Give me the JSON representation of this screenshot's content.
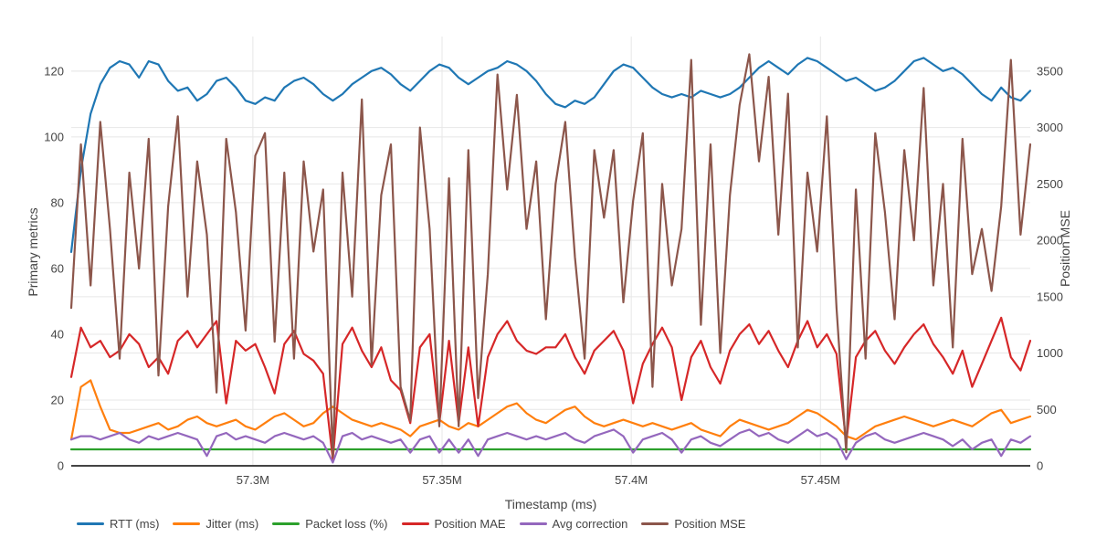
{
  "chart_data": {
    "type": "line",
    "title": "",
    "x_axis": {
      "title": "Timestamp (ms)",
      "range": [
        57252000,
        57505440
      ],
      "ticks": [
        {
          "value": 57300000,
          "label": "57.3M"
        },
        {
          "value": 57350000,
          "label": "57.35M"
        },
        {
          "value": 57400000,
          "label": "57.4M"
        },
        {
          "value": 57450000,
          "label": "57.45M"
        }
      ]
    },
    "y_left": {
      "title": "Primary metrics",
      "range": [
        0,
        130.5
      ],
      "ticks": [
        0,
        20,
        40,
        60,
        80,
        100,
        120
      ]
    },
    "y_right": {
      "title": "Position MSE",
      "range": [
        0,
        3807
      ],
      "ticks": [
        0,
        500,
        1000,
        1500,
        2000,
        2500,
        3000,
        3500
      ]
    },
    "x_start": 57252000,
    "x_step": 2560,
    "n_points": 100,
    "grid": {
      "show": true,
      "color": "#e7e7e7",
      "zeroline_color": "#444444"
    },
    "legend": {
      "position": "bottom-left"
    },
    "series": [
      {
        "name": "RTT (ms)",
        "color": "#1f77b4",
        "axis": "left",
        "values": [
          65,
          90,
          107,
          116,
          121,
          123,
          122,
          118,
          123,
          122,
          117,
          114,
          115,
          111,
          113,
          117,
          118,
          115,
          111,
          110,
          112,
          111,
          115,
          117,
          118,
          116,
          113,
          111,
          113,
          116,
          118,
          120,
          121,
          119,
          116,
          114,
          117,
          120,
          122,
          121,
          118,
          116,
          118,
          120,
          121,
          123,
          122,
          120,
          117,
          113,
          110,
          109,
          111,
          110,
          112,
          116,
          120,
          122,
          121,
          118,
          115,
          113,
          112,
          113,
          112,
          114,
          113,
          112,
          113,
          115,
          118,
          121,
          123,
          121,
          119,
          122,
          124,
          123,
          121,
          119,
          117,
          118,
          116,
          114,
          115,
          117,
          120,
          123,
          124,
          122,
          120,
          121,
          119,
          116,
          113,
          111,
          115,
          112,
          111,
          114
        ]
      },
      {
        "name": "Jitter (ms)",
        "color": "#ff7f0e",
        "axis": "left",
        "values": [
          8,
          24,
          26,
          18,
          11,
          10,
          10,
          11,
          12,
          13,
          11,
          12,
          14,
          15,
          13,
          12,
          13,
          14,
          12,
          11,
          13,
          15,
          16,
          14,
          12,
          13,
          16,
          18,
          16,
          14,
          13,
          12,
          13,
          12,
          11,
          9,
          12,
          13,
          14,
          12,
          11,
          13,
          12,
          14,
          16,
          18,
          19,
          16,
          14,
          13,
          15,
          17,
          18,
          15,
          13,
          12,
          13,
          14,
          13,
          12,
          13,
          12,
          11,
          12,
          13,
          11,
          10,
          9,
          12,
          14,
          13,
          12,
          11,
          12,
          13,
          15,
          17,
          16,
          14,
          12,
          9,
          8,
          10,
          12,
          13,
          14,
          15,
          14,
          13,
          12,
          13,
          14,
          13,
          12,
          14,
          16,
          17,
          13,
          14,
          15
        ]
      },
      {
        "name": "Packet loss (%)",
        "color": "#2ca02c",
        "axis": "left",
        "values": [
          5,
          5,
          5,
          5,
          5,
          5,
          5,
          5,
          5,
          5,
          5,
          5,
          5,
          5,
          5,
          5,
          5,
          5,
          5,
          5,
          5,
          5,
          5,
          5,
          5,
          5,
          5,
          5,
          5,
          5,
          5,
          5,
          5,
          5,
          5,
          5,
          5,
          5,
          5,
          5,
          5,
          5,
          5,
          5,
          5,
          5,
          5,
          5,
          5,
          5,
          5,
          5,
          5,
          5,
          5,
          5,
          5,
          5,
          5,
          5,
          5,
          5,
          5,
          5,
          5,
          5,
          5,
          5,
          5,
          5,
          5,
          5,
          5,
          5,
          5,
          5,
          5,
          5,
          5,
          5,
          5,
          5,
          5,
          5,
          5,
          5,
          5,
          5,
          5,
          5,
          5,
          5,
          5,
          5,
          5,
          5,
          5,
          5,
          5,
          5
        ]
      },
      {
        "name": "Position MAE",
        "color": "#d62728",
        "axis": "left",
        "values": [
          27,
          42,
          36,
          38,
          33,
          35,
          40,
          37,
          30,
          33,
          28,
          38,
          41,
          36,
          40,
          44,
          19,
          38,
          35,
          37,
          30,
          22,
          37,
          41,
          34,
          32,
          28,
          2,
          37,
          42,
          35,
          30,
          36,
          26,
          23,
          13,
          36,
          40,
          13,
          38,
          13,
          36,
          12,
          33,
          40,
          44,
          38,
          35,
          34,
          36,
          36,
          40,
          33,
          28,
          35,
          38,
          41,
          35,
          19,
          31,
          37,
          42,
          36,
          20,
          33,
          38,
          30,
          25,
          35,
          40,
          43,
          37,
          41,
          35,
          30,
          38,
          44,
          36,
          40,
          34,
          7,
          33,
          38,
          41,
          35,
          31,
          36,
          40,
          43,
          37,
          33,
          28,
          35,
          24,
          31,
          38,
          45,
          33,
          29,
          38
        ]
      },
      {
        "name": "Avg correction",
        "color": "#9467bd",
        "axis": "left",
        "values": [
          8,
          9,
          9,
          8,
          9,
          10,
          8,
          7,
          9,
          8,
          9,
          10,
          9,
          8,
          3,
          9,
          10,
          8,
          9,
          8,
          7,
          9,
          10,
          9,
          8,
          9,
          7,
          1,
          9,
          10,
          8,
          9,
          8,
          7,
          8,
          4,
          8,
          9,
          4,
          8,
          4,
          8,
          3,
          8,
          9,
          10,
          9,
          8,
          9,
          8,
          9,
          10,
          8,
          7,
          9,
          10,
          11,
          9,
          4,
          8,
          9,
          10,
          8,
          4,
          8,
          9,
          7,
          6,
          8,
          10,
          11,
          9,
          10,
          8,
          7,
          9,
          11,
          9,
          10,
          8,
          2,
          7,
          9,
          10,
          8,
          7,
          8,
          9,
          10,
          9,
          8,
          6,
          8,
          5,
          7,
          8,
          3,
          8,
          7,
          9
        ]
      },
      {
        "name": "Position MSE",
        "color": "#8c564b",
        "axis": "right",
        "values": [
          1400,
          2850,
          1600,
          3050,
          2100,
          950,
          2600,
          1750,
          2900,
          800,
          2300,
          3100,
          1500,
          2700,
          2050,
          650,
          2900,
          2250,
          1200,
          2750,
          2950,
          1100,
          2600,
          950,
          2700,
          1900,
          2450,
          80,
          2600,
          1500,
          3250,
          900,
          2400,
          2850,
          700,
          400,
          3000,
          2100,
          350,
          2550,
          350,
          2800,
          600,
          1700,
          3470,
          2450,
          3290,
          2100,
          2700,
          1300,
          2500,
          3050,
          1850,
          950,
          2800,
          2200,
          2800,
          1450,
          2350,
          2950,
          700,
          2500,
          1600,
          2100,
          3600,
          1250,
          2850,
          1000,
          2400,
          3200,
          3650,
          2700,
          3450,
          2050,
          3300,
          1050,
          2600,
          1900,
          3100,
          1400,
          120,
          2450,
          950,
          2950,
          2250,
          1300,
          2800,
          2000,
          3350,
          1600,
          2500,
          1050,
          2900,
          1700,
          2100,
          1550,
          2300,
          3600,
          2050,
          2850
        ]
      }
    ]
  }
}
